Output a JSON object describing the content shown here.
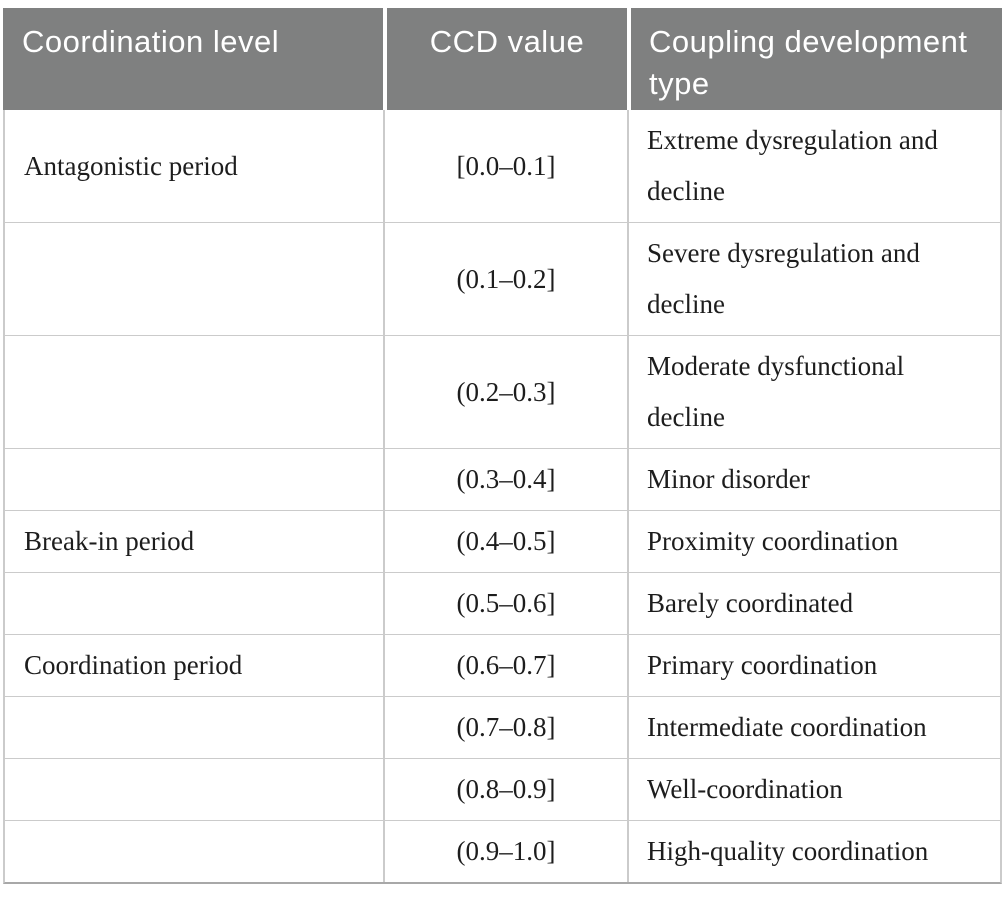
{
  "table": {
    "header": {
      "col1": "Coordination level",
      "col2": "CCD value",
      "col3": "Coupling development type"
    },
    "rows": [
      {
        "level": "Antagonistic period",
        "ccd": "[0.0–0.1]",
        "type": "Extreme dysregulation and decline"
      },
      {
        "level": "",
        "ccd": "(0.1–0.2]",
        "type": "Severe dysregulation and decline"
      },
      {
        "level": "",
        "ccd": "(0.2–0.3]",
        "type": "Moderate dysfunctional decline"
      },
      {
        "level": "",
        "ccd": "(0.3–0.4]",
        "type": "Minor disorder"
      },
      {
        "level": "Break-in period",
        "ccd": "(0.4–0.5]",
        "type": "Proximity coordination"
      },
      {
        "level": "",
        "ccd": "(0.5–0.6]",
        "type": "Barely coordinated"
      },
      {
        "level": "Coordination period",
        "ccd": "(0.6–0.7]",
        "type": "Primary coordination"
      },
      {
        "level": "",
        "ccd": "(0.7–0.8]",
        "type": "Intermediate coordination"
      },
      {
        "level": "",
        "ccd": "(0.8–0.9]",
        "type": "Well-coordination"
      },
      {
        "level": "",
        "ccd": "(0.9–1.0]",
        "type": "High-quality coordination"
      }
    ],
    "colors": {
      "header_background": "#7f8080",
      "header_text": "#ffffff",
      "body_text": "#1d1d1d",
      "gridline": "#cbcbcb",
      "bottom_border": "#a8a8a8",
      "page_background": "#ffffff"
    }
  }
}
